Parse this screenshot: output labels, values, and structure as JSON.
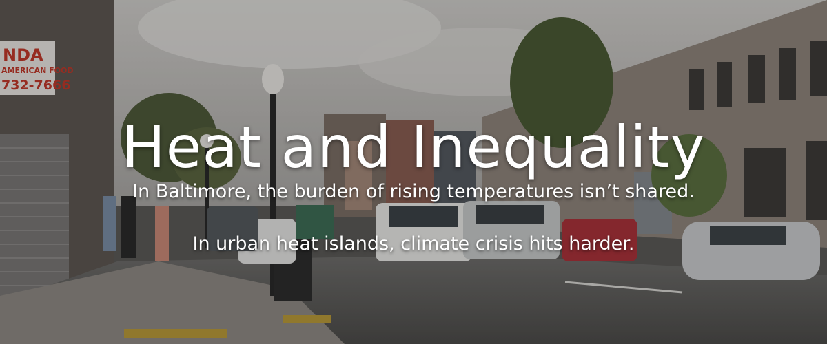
{
  "hero": {
    "title": "Heat and Inequality",
    "subtitle_1": "In Baltimore, the burden of rising temperatures isn’t shared.",
    "subtitle_2": "In urban heat islands, climate crisis hits harder.",
    "storefront_sign_line1": "NDA",
    "storefront_sign_line2": "AMERICAN FOOD",
    "storefront_sign_line3": "732-7666"
  },
  "colors": {
    "text": "#ffffff",
    "sky": "#c9c6c2",
    "brick": "#9a8f86",
    "street": "#6d6c6a"
  }
}
